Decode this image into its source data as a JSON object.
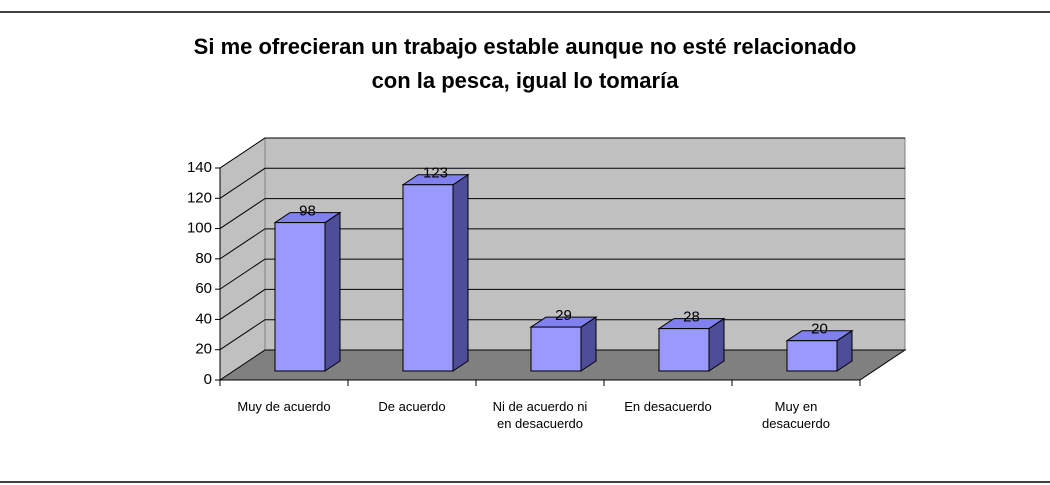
{
  "chart_data": {
    "type": "bar3d",
    "title": "Si me ofrecieran un trabajo estable aunque no esté relacionado con la pesca, igual lo tomaría",
    "categories": [
      "Muy de acuerdo",
      "De acuerdo",
      "Ni de acuerdo ni en desacuerdo",
      "En desacuerdo",
      "Muy en desacuerdo"
    ],
    "values": [
      98,
      123,
      29,
      28,
      20
    ],
    "color": "#9999ff",
    "ylim": [
      0,
      140
    ],
    "yticks": [
      0,
      20,
      40,
      60,
      80,
      100,
      120,
      140
    ],
    "grid": true
  }
}
